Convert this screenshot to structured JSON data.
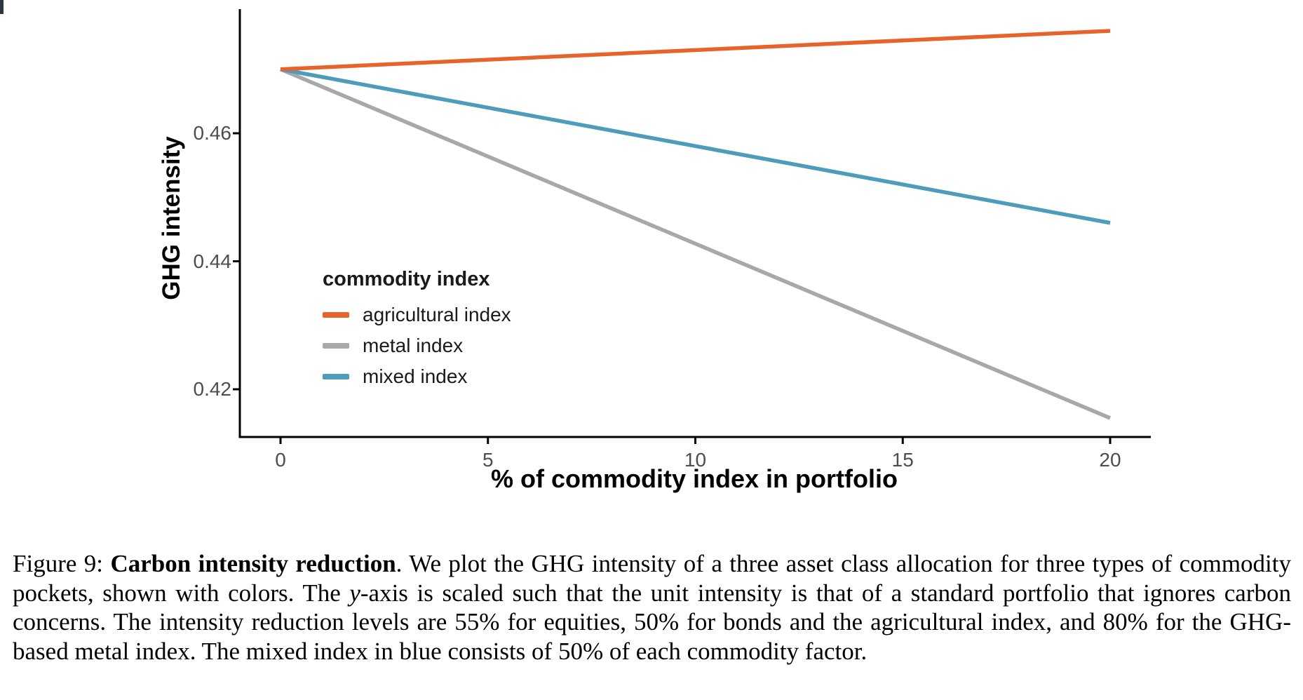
{
  "chart_data": {
    "type": "line",
    "x": [
      0,
      20
    ],
    "series": [
      {
        "name": "agricultural index",
        "color": "#E8632C",
        "values": [
          0.47,
          0.476
        ]
      },
      {
        "name": "metal index",
        "color": "#A8A8A8",
        "values": [
          0.47,
          0.4155
        ]
      },
      {
        "name": "mixed index",
        "color": "#4D9CBB",
        "values": [
          0.47,
          0.446
        ]
      }
    ],
    "title": "",
    "xlabel": "% of commodity index in portfolio",
    "ylabel": "GHG intensity",
    "xlim": [
      -1,
      21
    ],
    "ylim": [
      0.4125,
      0.479
    ],
    "x_ticks": [
      0,
      5,
      10,
      15,
      20
    ],
    "x_tick_labels": [
      "0",
      "5",
      "10",
      "15",
      "20"
    ],
    "y_ticks": [
      0.42,
      0.44,
      0.46
    ],
    "y_tick_labels": [
      "0.42",
      "0.44",
      "0.46"
    ],
    "grid": false,
    "legend_title": "commodity index",
    "legend_position": "inside-left",
    "axis_color": "#000000",
    "tick_label_color": "#4d4d4d"
  },
  "caption": {
    "segments": [
      {
        "text": "Figure 9: ",
        "style": "regular"
      },
      {
        "text": "Carbon intensity reduction",
        "style": "bold"
      },
      {
        "text": ". We plot the GHG intensity of a three asset class allocation for three types of commodity pockets, shown with colors. The ",
        "style": "regular"
      },
      {
        "text": "y",
        "style": "italic"
      },
      {
        "text": "-axis is scaled such that the unit intensity is that of a standard portfolio that ignores carbon concerns. The intensity reduction levels are 55% for equities, 50% for bonds and the agricultural index, and 80% for the GHG-based metal index. The mixed index in blue consists of 50% of each commodity factor.",
        "style": "regular"
      }
    ]
  }
}
